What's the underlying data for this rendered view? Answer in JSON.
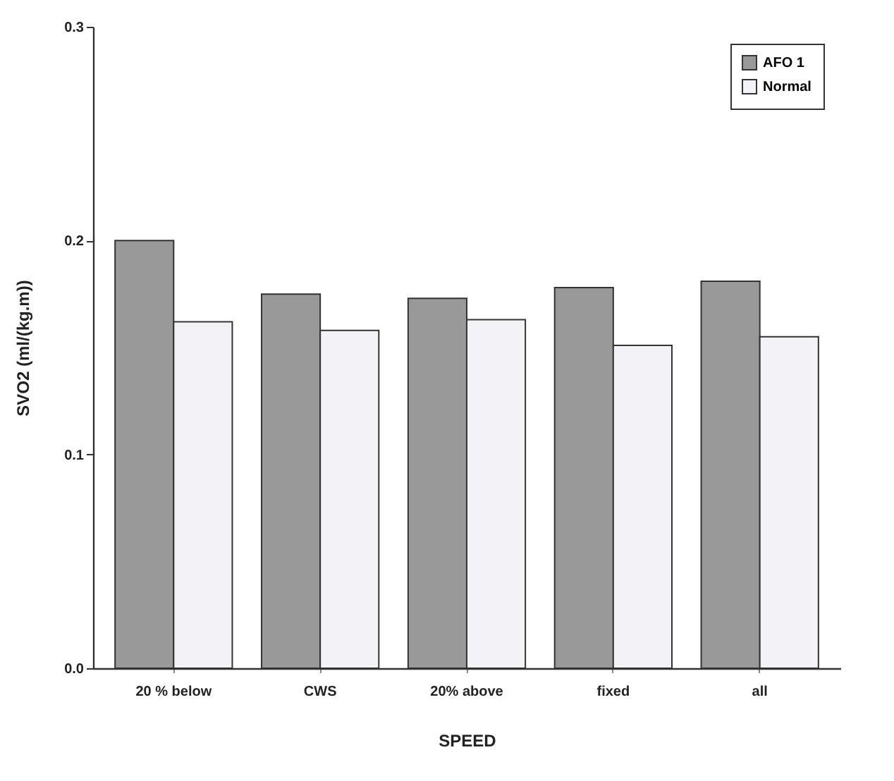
{
  "chart_data": {
    "type": "bar",
    "xlabel": "SPEED",
    "ylabel": "SVO2  (ml/(kg.m))",
    "categories": [
      "20 %  below",
      "CWS",
      "20%  above",
      "fixed",
      "all"
    ],
    "series": [
      {
        "name": "AFO 1",
        "color": "#999999",
        "values": [
          0.2,
          0.175,
          0.173,
          0.178,
          0.181
        ]
      },
      {
        "name": "Normal",
        "color": "#f3f3f7",
        "values": [
          0.162,
          0.158,
          0.163,
          0.151,
          0.155
        ]
      }
    ],
    "ylim": [
      0,
      0.3
    ],
    "yticks": [
      {
        "value": 0,
        "label": "0.0"
      },
      {
        "value": 0.1,
        "label": "0.1"
      },
      {
        "value": 0.2,
        "label": "0.2"
      },
      {
        "value": 0.3,
        "label": "0.3"
      }
    ],
    "grid": false,
    "legend": "top right"
  }
}
